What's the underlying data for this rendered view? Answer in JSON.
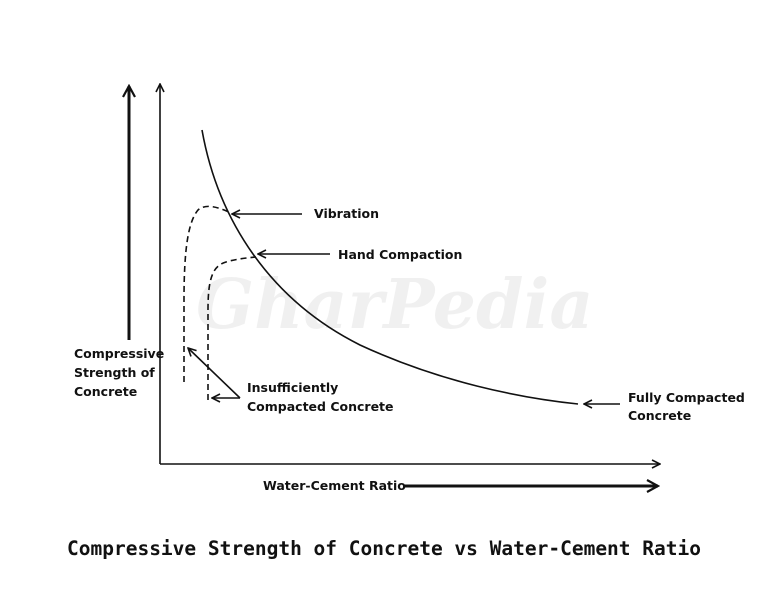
{
  "watermark": "GharPedia",
  "title": "Compressive Strength of Concrete vs Water-Cement Ratio",
  "axes": {
    "y_label_lines": [
      "Compressive",
      "Strength of",
      "Concrete"
    ],
    "x_label": "Water-Cement Ratio"
  },
  "annotations": {
    "vibration": "Vibration",
    "hand_compaction": "Hand Compaction",
    "insufficient_lines": [
      "Insufficiently",
      "Compacted Concrete"
    ],
    "fully_lines": [
      "Fully Compacted",
      "Concrete"
    ]
  },
  "colors": {
    "ink": "#111111"
  }
}
